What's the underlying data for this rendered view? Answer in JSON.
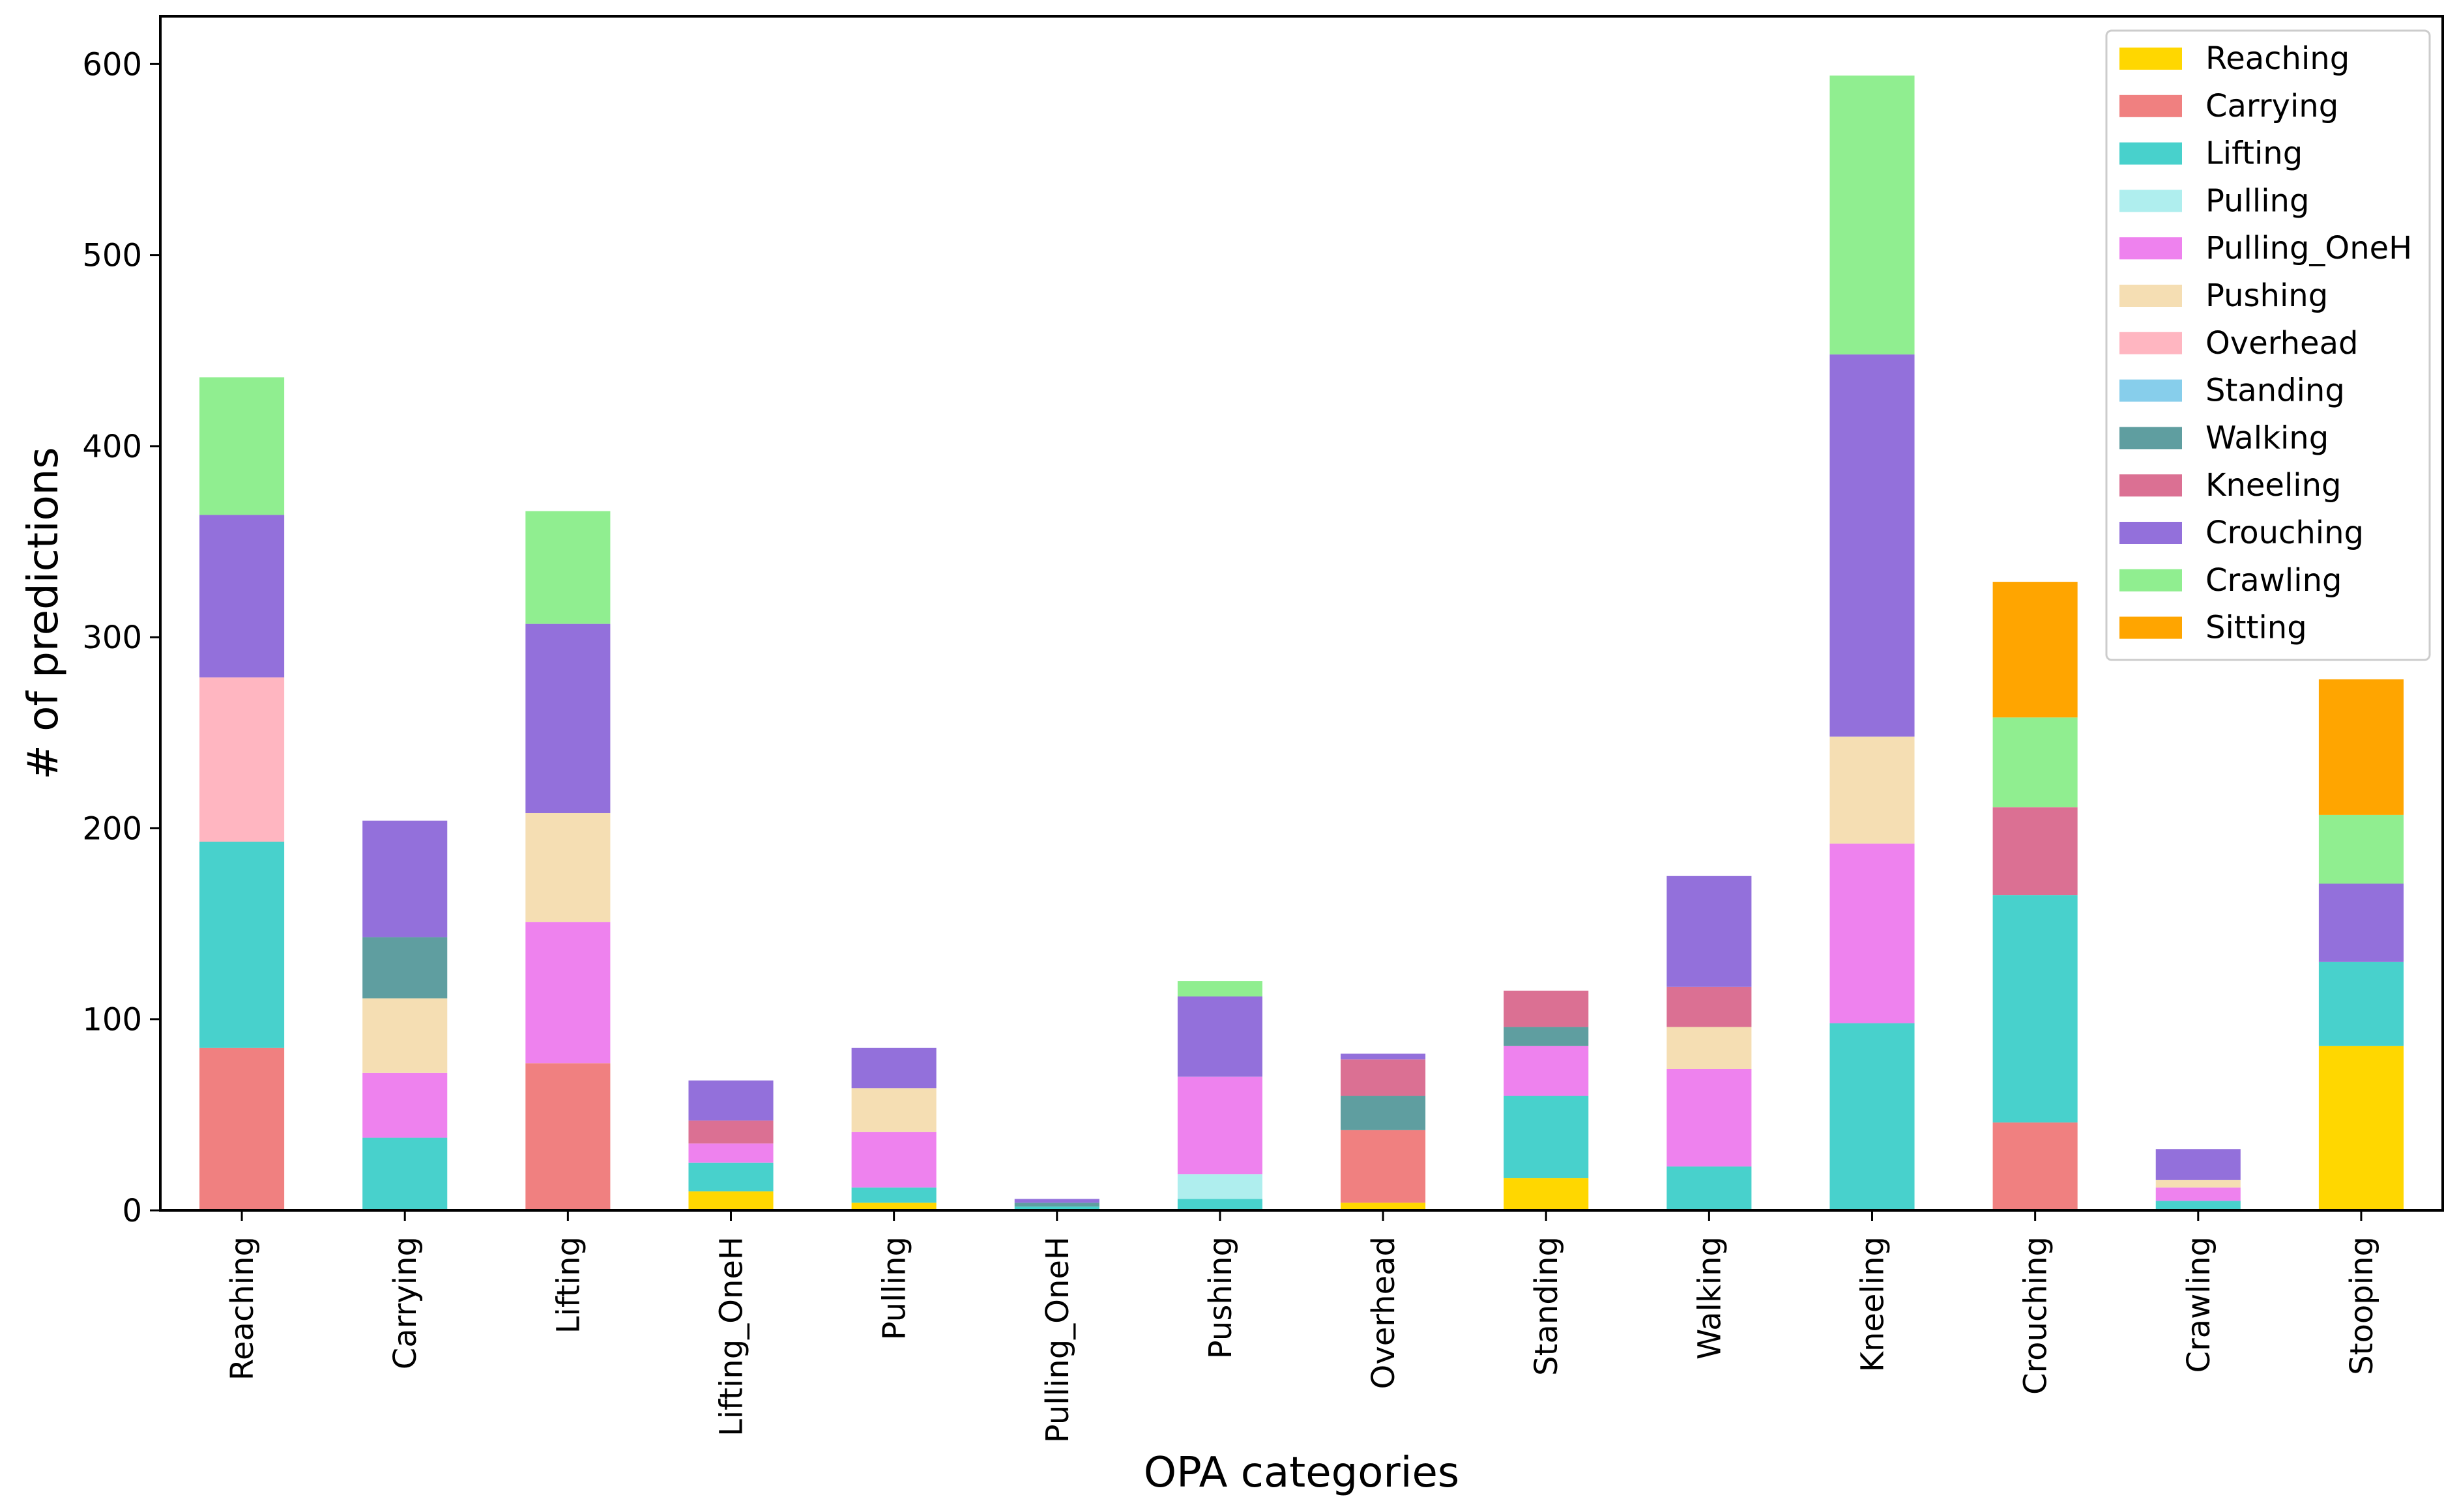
{
  "chart_data": {
    "type": "bar",
    "stacked": true,
    "title": "",
    "xlabel": "OPA categories",
    "ylabel": "# of predictions",
    "ylim": [
      0,
      625
    ],
    "yticks": [
      0,
      100,
      200,
      300,
      400,
      500,
      600
    ],
    "grid": false,
    "legend_position": "top-right",
    "categories": [
      "Reaching",
      "Carrying",
      "Lifting",
      "Lifting_OneH",
      "Pulling",
      "Pulling_OneH",
      "Pushing",
      "Overhead",
      "Standing",
      "Walking",
      "Kneeling",
      "Crouching",
      "Crawling",
      "Stooping"
    ],
    "series": [
      {
        "name": "Reaching",
        "color": "#FFD700",
        "values": [
          0,
          0,
          0,
          10,
          4,
          0,
          0,
          4,
          17,
          0,
          0,
          0,
          0,
          86
        ]
      },
      {
        "name": "Carrying",
        "color": "#F08080",
        "values": [
          85,
          0,
          77,
          0,
          0,
          0,
          0,
          38,
          0,
          0,
          0,
          46,
          0,
          0
        ]
      },
      {
        "name": "Lifting",
        "color": "#48D1CC",
        "values": [
          108,
          38,
          0,
          15,
          8,
          2,
          6,
          0,
          43,
          23,
          98,
          119,
          5,
          44
        ]
      },
      {
        "name": "Pulling",
        "color": "#AFEEEE",
        "values": [
          0,
          0,
          0,
          0,
          0,
          0,
          13,
          0,
          0,
          0,
          0,
          0,
          0,
          0
        ]
      },
      {
        "name": "Pulling_OneH",
        "color": "#EE82EE",
        "values": [
          0,
          34,
          74,
          10,
          29,
          0,
          51,
          0,
          26,
          51,
          94,
          0,
          7,
          0
        ]
      },
      {
        "name": "Pushing",
        "color": "#F5DEB3",
        "values": [
          0,
          39,
          57,
          0,
          23,
          0,
          0,
          0,
          0,
          22,
          56,
          0,
          4,
          0
        ]
      },
      {
        "name": "Overhead",
        "color": "#FFB6C1",
        "values": [
          86,
          0,
          0,
          0,
          0,
          0,
          0,
          0,
          0,
          0,
          0,
          0,
          0,
          0
        ]
      },
      {
        "name": "Standing",
        "color": "#87CEEB",
        "values": [
          0,
          0,
          0,
          0,
          0,
          0,
          0,
          0,
          0,
          0,
          0,
          0,
          0,
          0
        ]
      },
      {
        "name": "Walking",
        "color": "#5F9EA0",
        "values": [
          0,
          32,
          0,
          0,
          0,
          2,
          0,
          18,
          10,
          0,
          0,
          0,
          0,
          0
        ]
      },
      {
        "name": "Kneeling",
        "color": "#DB7093",
        "values": [
          0,
          0,
          0,
          12,
          0,
          0,
          0,
          19,
          19,
          21,
          0,
          46,
          0,
          0
        ]
      },
      {
        "name": "Crouching",
        "color": "#9370DB",
        "values": [
          85,
          61,
          99,
          21,
          21,
          2,
          42,
          3,
          0,
          58,
          200,
          0,
          16,
          41
        ]
      },
      {
        "name": "Crawling",
        "color": "#90EE90",
        "values": [
          72,
          0,
          59,
          0,
          0,
          0,
          8,
          0,
          0,
          0,
          146,
          47,
          0,
          36
        ]
      },
      {
        "name": "Sitting",
        "color": "#FFA500",
        "values": [
          0,
          0,
          0,
          0,
          0,
          0,
          0,
          0,
          0,
          0,
          0,
          71,
          0,
          71
        ]
      }
    ]
  }
}
